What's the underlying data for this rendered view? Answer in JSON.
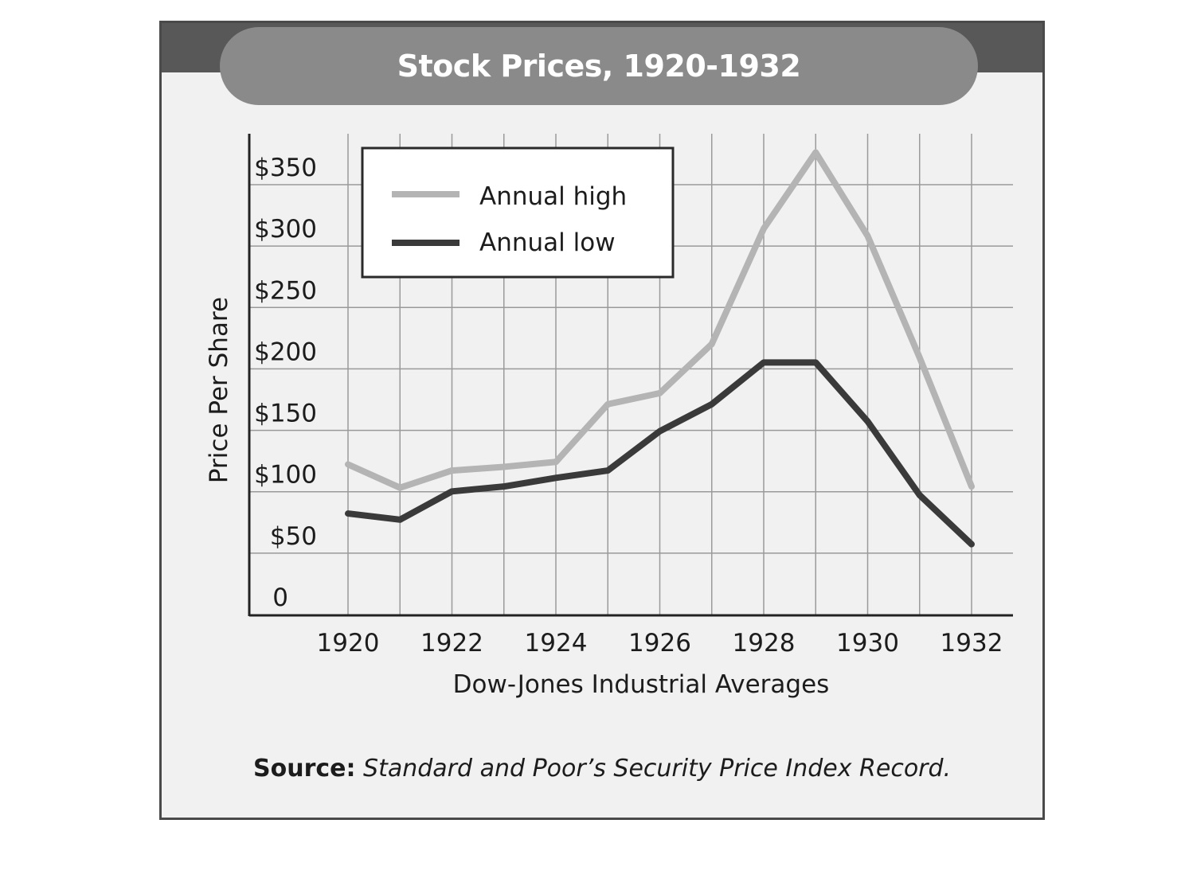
{
  "chart_data": {
    "type": "line",
    "title": "Stock Prices, 1920-1932",
    "xlabel": "Dow-Jones Industrial Averages",
    "ylabel": "Price Per Share",
    "x": [
      1920,
      1921,
      1922,
      1923,
      1924,
      1925,
      1926,
      1927,
      1928,
      1929,
      1930,
      1931,
      1932
    ],
    "xticks": [
      1920,
      1922,
      1924,
      1926,
      1928,
      1930,
      1932
    ],
    "xtick_labels": [
      "1920",
      "1922",
      "1924",
      "1926",
      "1928",
      "1930",
      "1932"
    ],
    "yticks": [
      0,
      50,
      100,
      150,
      200,
      250,
      300,
      350
    ],
    "ytick_labels": [
      "0",
      "$50",
      "$100",
      "$150",
      "$200",
      "$250",
      "$300",
      "$350"
    ],
    "xlim": [
      1918.2,
      1932.8
    ],
    "ylim": [
      -15,
      375
    ],
    "grid": true,
    "legend_position": "top-left",
    "series": [
      {
        "name": "Annual high",
        "color": "#b4b4b4",
        "values": [
          108,
          89,
          103,
          106,
          110,
          157,
          166,
          206,
          300,
          362,
          294,
          195,
          90
        ]
      },
      {
        "name": "Annual low",
        "color": "#3a3a3a",
        "values": [
          68,
          63,
          86,
          90,
          97,
          103,
          135,
          157,
          191,
          191,
          143,
          83,
          43
        ]
      }
    ]
  },
  "source": {
    "label": "Source:",
    "text": "Standard and Poor’s Security Price Index Record."
  }
}
